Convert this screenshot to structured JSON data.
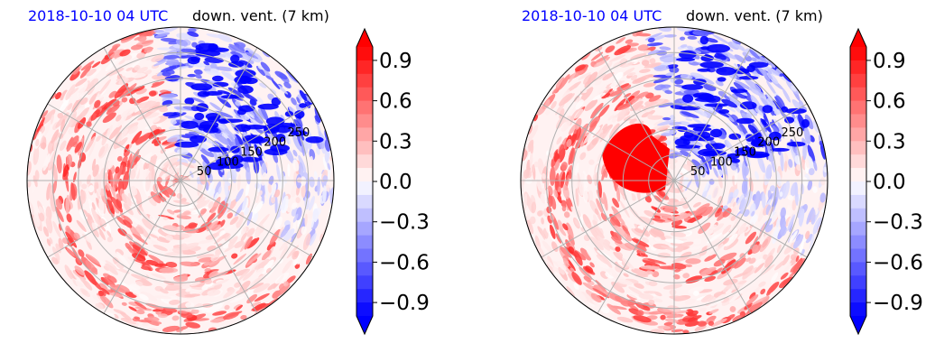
{
  "chart_data": [
    {
      "type": "heatmap",
      "projection": "polar",
      "title_left": "2018-10-10 04 UTC",
      "title_right": "down. vent. (7 km)",
      "title_left_color": "#0000ff",
      "radial_ticks": [
        "50",
        "100",
        "150",
        "200",
        "250"
      ],
      "rmax": 300,
      "grid": true,
      "colormap": "bwr",
      "colorbar": {
        "vmin": -1.0,
        "vmax": 1.0,
        "levels": 20,
        "extend": "both",
        "ticks": [
          "0.9",
          "0.6",
          "0.3",
          "0.0",
          "−0.3",
          "−0.6",
          "−0.9"
        ],
        "low_color": "#0000ff",
        "high_color": "#ff0000"
      }
    },
    {
      "type": "heatmap",
      "projection": "polar",
      "title_left": "2018-10-10 04 UTC",
      "title_right": "down. vent. (7 km)",
      "title_left_color": "#0000ff",
      "radial_ticks": [
        "50",
        "100",
        "150",
        "200",
        "250"
      ],
      "rmax": 300,
      "grid": true,
      "colormap": "bwr",
      "colorbar": {
        "vmin": -1.0,
        "vmax": 1.0,
        "levels": 20,
        "extend": "both",
        "ticks": [
          "0.9",
          "0.6",
          "0.3",
          "0.0",
          "−0.3",
          "−0.6",
          "−0.9"
        ],
        "low_color": "#0000ff",
        "high_color": "#ff0000"
      }
    }
  ]
}
